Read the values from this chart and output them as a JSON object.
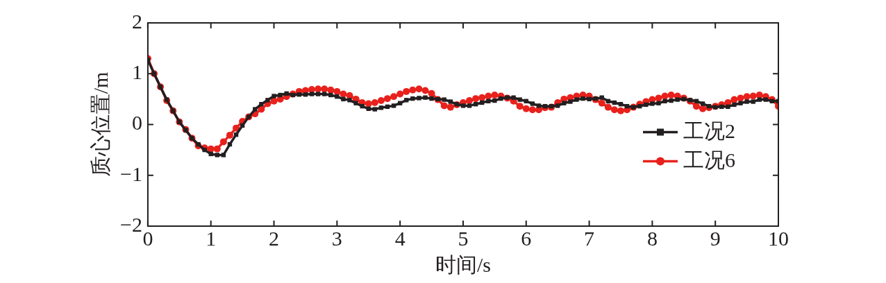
{
  "chart_data": {
    "type": "line",
    "xlabel": "时间/s",
    "ylabel": "质心位置/m",
    "x": [
      0,
      0.1,
      0.2,
      0.3,
      0.4,
      0.5,
      0.6,
      0.7,
      0.8,
      0.9,
      1,
      1.1,
      1.2,
      1.3,
      1.4,
      1.5,
      1.6,
      1.7,
      1.8,
      1.9,
      2,
      2.1,
      2.2,
      2.3,
      2.4,
      2.5,
      2.6,
      2.7,
      2.8,
      2.9,
      3,
      3.1,
      3.2,
      3.3,
      3.4,
      3.5,
      3.6,
      3.7,
      3.8,
      3.9,
      4,
      4.1,
      4.2,
      4.3,
      4.4,
      4.5,
      4.6,
      4.7,
      4.8,
      4.9,
      5,
      5.1,
      5.2,
      5.3,
      5.4,
      5.5,
      5.6,
      5.7,
      5.8,
      5.9,
      6,
      6.1,
      6.2,
      6.3,
      6.4,
      6.5,
      6.6,
      6.7,
      6.8,
      6.9,
      7,
      7.1,
      7.2,
      7.3,
      7.4,
      7.5,
      7.6,
      7.7,
      7.8,
      7.9,
      8,
      8.1,
      8.2,
      8.3,
      8.4,
      8.5,
      8.6,
      8.7,
      8.8,
      8.9,
      9,
      9.1,
      9.2,
      9.3,
      9.4,
      9.5,
      9.6,
      9.7,
      9.8,
      9.9,
      10
    ],
    "series": [
      {
        "name": "工况2",
        "color": "#231f20",
        "marker": "square",
        "values": [
          1.27,
          1.0,
          0.74,
          0.49,
          0.27,
          0.05,
          -0.11,
          -0.27,
          -0.39,
          -0.5,
          -0.58,
          -0.6,
          -0.6,
          -0.39,
          -0.2,
          -0.02,
          0.15,
          0.3,
          0.4,
          0.48,
          0.56,
          0.58,
          0.61,
          0.58,
          0.59,
          0.59,
          0.6,
          0.6,
          0.6,
          0.58,
          0.55,
          0.5,
          0.48,
          0.42,
          0.36,
          0.31,
          0.3,
          0.33,
          0.35,
          0.37,
          0.42,
          0.48,
          0.51,
          0.52,
          0.53,
          0.51,
          0.5,
          0.49,
          0.45,
          0.4,
          0.37,
          0.37,
          0.4,
          0.43,
          0.46,
          0.47,
          0.51,
          0.53,
          0.53,
          0.49,
          0.46,
          0.41,
          0.37,
          0.36,
          0.36,
          0.37,
          0.42,
          0.45,
          0.49,
          0.51,
          0.5,
          0.51,
          0.53,
          0.46,
          0.43,
          0.4,
          0.36,
          0.34,
          0.36,
          0.39,
          0.41,
          0.42,
          0.46,
          0.47,
          0.49,
          0.5,
          0.48,
          0.46,
          0.41,
          0.36,
          0.34,
          0.35,
          0.35,
          0.39,
          0.42,
          0.45,
          0.45,
          0.49,
          0.49,
          0.46,
          0.46
        ]
      },
      {
        "name": "工况6",
        "color": "#e8211c",
        "marker": "circle",
        "values": [
          1.3,
          1.0,
          0.74,
          0.47,
          0.27,
          0.05,
          -0.1,
          -0.27,
          -0.42,
          -0.46,
          -0.48,
          -0.48,
          -0.34,
          -0.21,
          -0.07,
          0.06,
          0.15,
          0.21,
          0.3,
          0.41,
          0.46,
          0.5,
          0.55,
          0.6,
          0.65,
          0.67,
          0.69,
          0.7,
          0.7,
          0.68,
          0.65,
          0.6,
          0.57,
          0.5,
          0.43,
          0.41,
          0.43,
          0.47,
          0.51,
          0.55,
          0.6,
          0.65,
          0.68,
          0.7,
          0.67,
          0.61,
          0.49,
          0.37,
          0.34,
          0.39,
          0.43,
          0.47,
          0.51,
          0.53,
          0.56,
          0.58,
          0.56,
          0.52,
          0.46,
          0.36,
          0.31,
          0.29,
          0.29,
          0.33,
          0.34,
          0.43,
          0.5,
          0.53,
          0.56,
          0.58,
          0.56,
          0.49,
          0.42,
          0.34,
          0.29,
          0.27,
          0.29,
          0.34,
          0.4,
          0.45,
          0.49,
          0.52,
          0.56,
          0.58,
          0.56,
          0.52,
          0.46,
          0.36,
          0.31,
          0.33,
          0.36,
          0.39,
          0.43,
          0.49,
          0.52,
          0.55,
          0.56,
          0.58,
          0.55,
          0.49,
          0.36
        ]
      }
    ],
    "xlim": [
      0,
      10
    ],
    "xticks": [
      0,
      1,
      2,
      3,
      4,
      5,
      6,
      7,
      8,
      9,
      10
    ],
    "ylim": [
      -2,
      2
    ],
    "yticks": [
      -2,
      -1,
      0,
      1,
      2
    ],
    "grid": false,
    "legend": "right",
    "line_style": "solid"
  }
}
